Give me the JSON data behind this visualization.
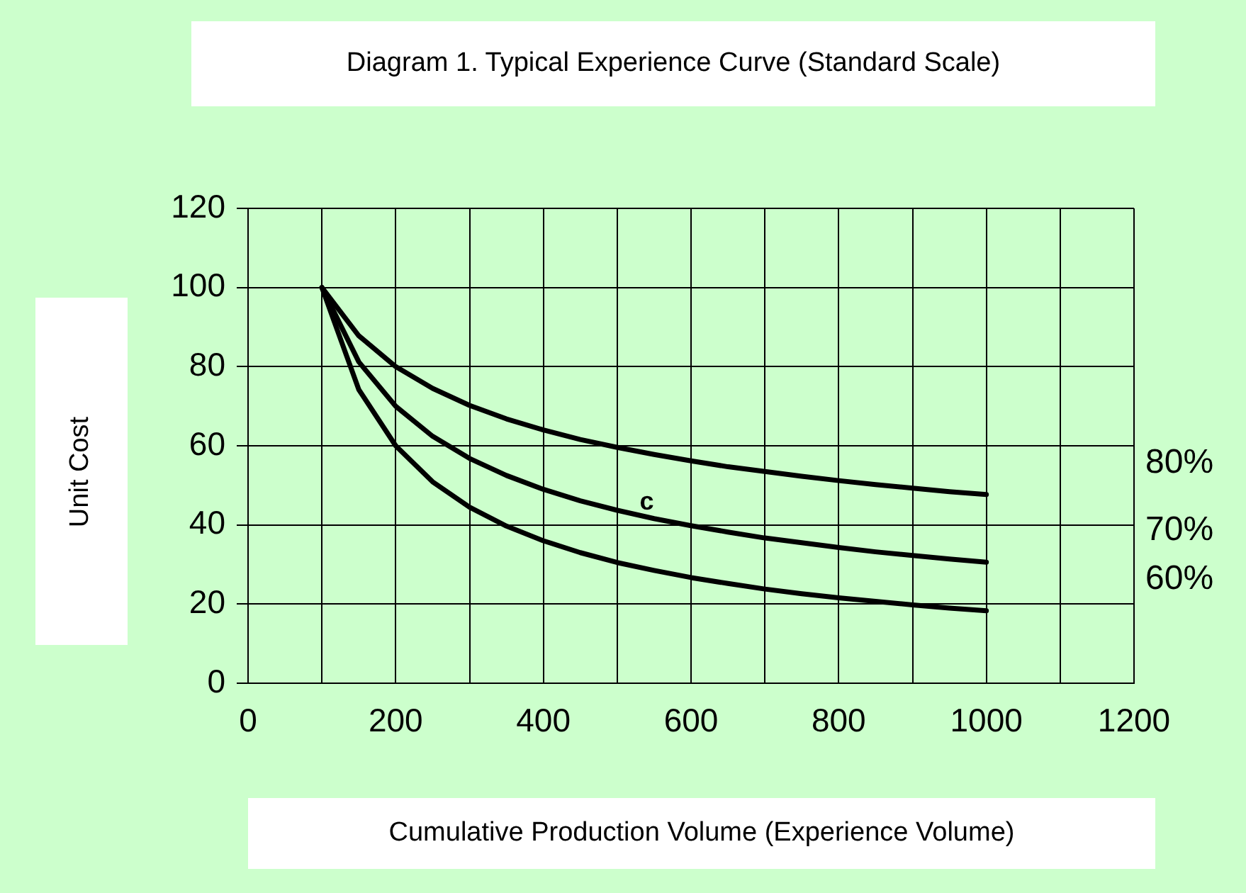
{
  "chart_data": {
    "type": "line",
    "title": "Diagram 1. Typical Experience Curve (Standard Scale)",
    "xlabel": "Cumulative Production Volume (Experience Volume)",
    "ylabel": "Unit Cost",
    "x": [
      100,
      150,
      200,
      250,
      300,
      350,
      400,
      450,
      500,
      550,
      600,
      650,
      700,
      750,
      800,
      850,
      900,
      950,
      1000
    ],
    "series": [
      {
        "name": "80%",
        "color": "#000000",
        "values": [
          100,
          87.8,
          80.0,
          74.5,
          70.2,
          66.8,
          64.0,
          61.6,
          59.6,
          57.8,
          56.2,
          54.7,
          53.5,
          52.3,
          51.2,
          50.2,
          49.3,
          48.4,
          47.7
        ]
      },
      {
        "name": "70%",
        "color": "#000000",
        "values": [
          100,
          81.2,
          70.0,
          62.4,
          56.8,
          52.5,
          49.0,
          46.1,
          43.7,
          41.6,
          39.8,
          38.2,
          36.7,
          35.5,
          34.3,
          33.2,
          32.3,
          31.4,
          30.6
        ]
      },
      {
        "name": "60%",
        "color": "#000000",
        "values": [
          100,
          74.2,
          60.0,
          50.9,
          44.5,
          39.7,
          36.0,
          33.0,
          30.5,
          28.5,
          26.7,
          25.2,
          23.8,
          22.6,
          21.6,
          20.7,
          19.8,
          19.0,
          18.3
        ]
      }
    ],
    "xlim": [
      0,
      1200
    ],
    "xticks": [
      0,
      {
        "value": 100,
        "label": null
      },
      200,
      {
        "value": 300,
        "label": null
      },
      400,
      {
        "value": 500,
        "label": null
      },
      600,
      {
        "value": 700,
        "label": null
      },
      800,
      {
        "value": 900,
        "label": null
      },
      1000,
      {
        "value": 1100,
        "label": null
      },
      1200
    ],
    "ylim": [
      0,
      120
    ],
    "yticks": [
      0,
      20,
      40,
      60,
      80,
      100,
      120
    ],
    "grid": true,
    "legend": false,
    "marker": "none",
    "line_style": "solid",
    "annotations": [
      "c"
    ]
  }
}
